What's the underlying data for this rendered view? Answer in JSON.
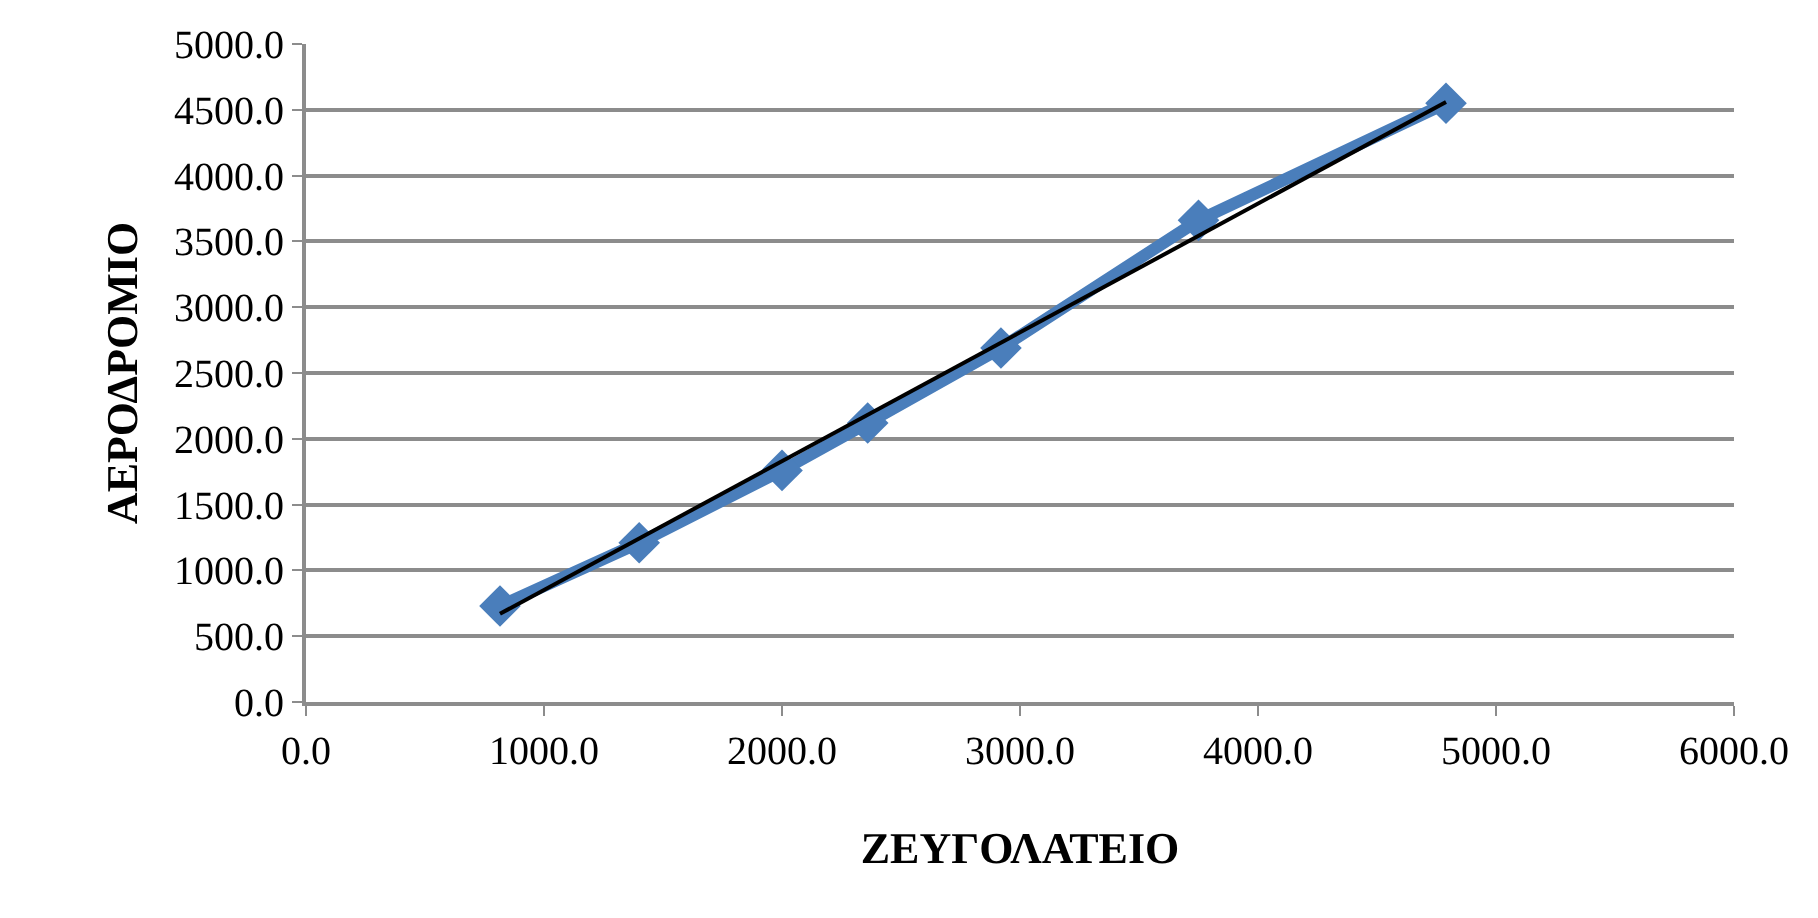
{
  "chart_data": {
    "type": "line",
    "xlabel": "ΖΕΥΓΟΛΑΤΕΙΟ",
    "ylabel": "ΑΕΡΟΔΡΟΜΙΟ",
    "x": [
      815,
      1400,
      2000,
      2360,
      2920,
      3750,
      4790
    ],
    "series": [
      {
        "color": "#4a7ebb",
        "values": [
          730,
          1210,
          1760,
          2120,
          2690,
          3660,
          4550
        ],
        "marker": "diamond"
      },
      {
        "type": "line",
        "color": "#000000",
        "x": [
          815,
          4790
        ],
        "values": [
          670,
          4560
        ],
        "marker": "none"
      }
    ],
    "xlim": [
      0,
      6000
    ],
    "ylim": [
      0,
      5000
    ],
    "xticks": [
      {
        "value": 0,
        "label": "0.0"
      },
      {
        "value": 1000,
        "label": "1000.0"
      },
      {
        "value": 2000,
        "label": "2000.0"
      },
      {
        "value": 3000,
        "label": "3000.0"
      },
      {
        "value": 4000,
        "label": "4000.0"
      },
      {
        "value": 5000,
        "label": "5000.0"
      },
      {
        "value": 6000,
        "label": "6000.0"
      }
    ],
    "yticks": [
      {
        "value": 0,
        "label": "0.0"
      },
      {
        "value": 500,
        "label": "500.0"
      },
      {
        "value": 1000,
        "label": "1000.0"
      },
      {
        "value": 1500,
        "label": "1500.0"
      },
      {
        "value": 2000,
        "label": "2000.0"
      },
      {
        "value": 2500,
        "label": "2500.0"
      },
      {
        "value": 3000,
        "label": "3000.0"
      },
      {
        "value": 3500,
        "label": "3500.0"
      },
      {
        "value": 4000,
        "label": "4000.0"
      },
      {
        "value": 4500,
        "label": "4500.0"
      },
      {
        "value": 5000,
        "label": "5000.0"
      }
    ],
    "grid": "y"
  }
}
